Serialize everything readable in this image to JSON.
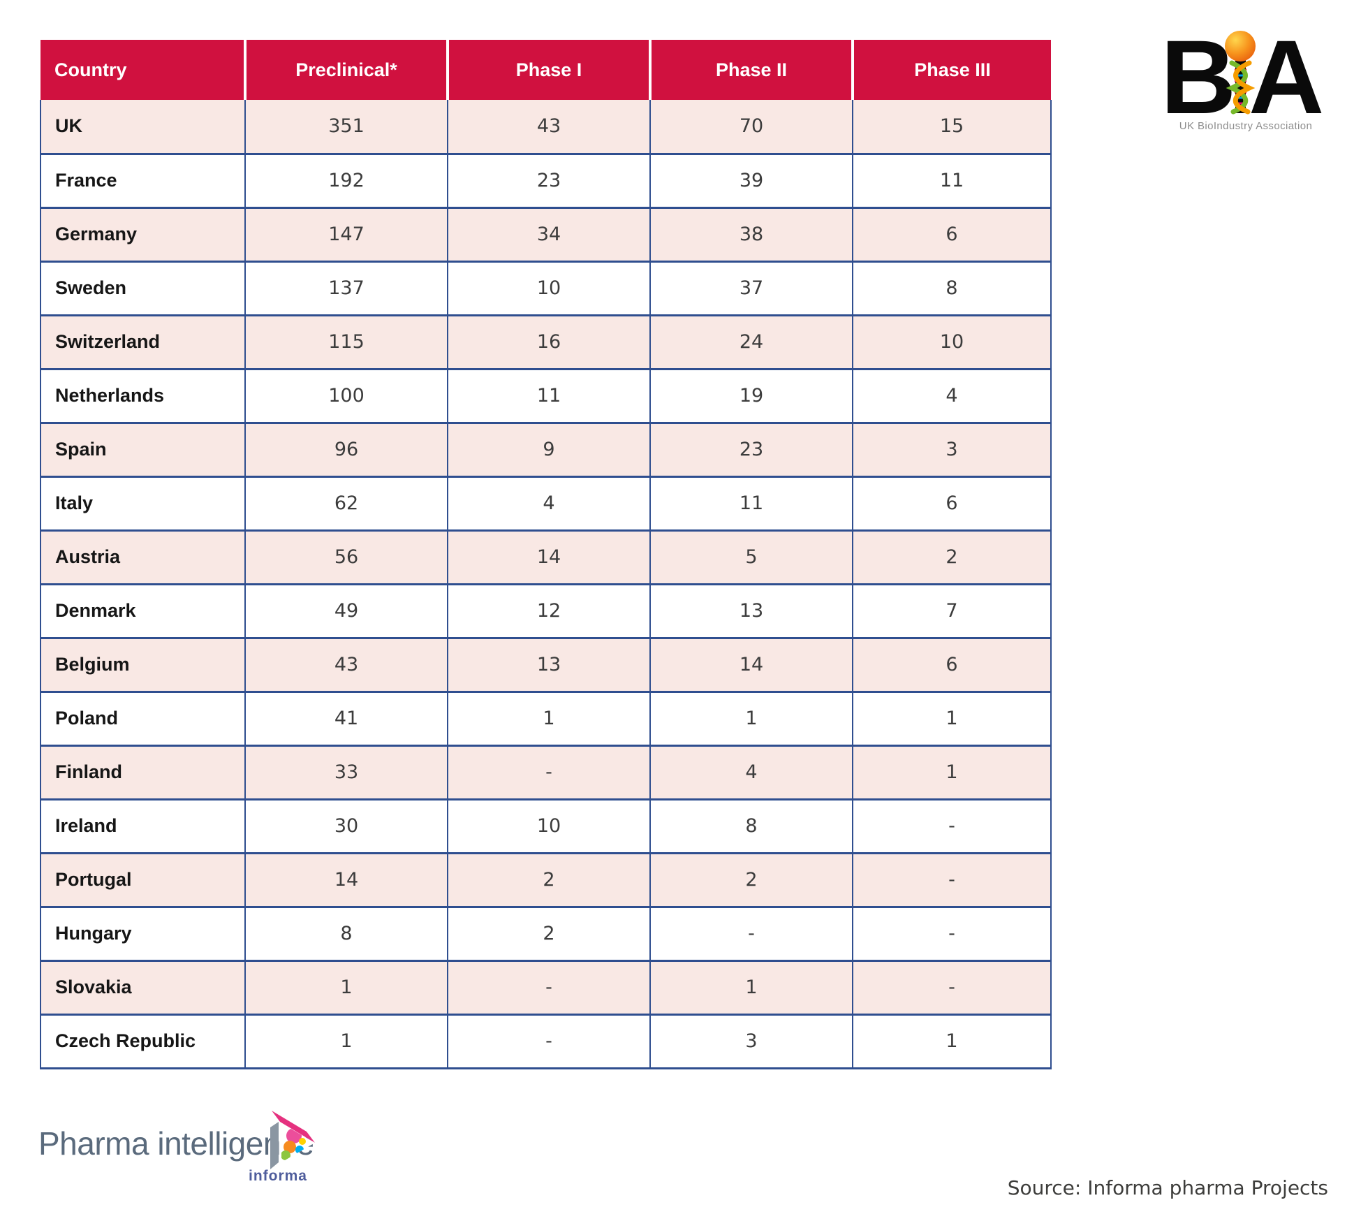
{
  "colors": {
    "red": "#D0113F",
    "pink": "#F9E8E4",
    "blue": "#2F4E8F",
    "text_dark": "#161616",
    "text_num": "#3C3C3C"
  },
  "chart_data": {
    "type": "table",
    "columns": [
      "Country",
      "Preclinical*",
      "Phase I",
      "Phase II",
      "Phase III"
    ],
    "rows": [
      [
        "UK",
        "351",
        "43",
        "70",
        "15"
      ],
      [
        "France",
        "192",
        "23",
        "39",
        "11"
      ],
      [
        "Germany",
        "147",
        "34",
        "38",
        "6"
      ],
      [
        "Sweden",
        "137",
        "10",
        "37",
        "8"
      ],
      [
        "Switzerland",
        "115",
        "16",
        "24",
        "10"
      ],
      [
        "Netherlands",
        "100",
        "11",
        "19",
        "4"
      ],
      [
        "Spain",
        "96",
        "9",
        "23",
        "3"
      ],
      [
        "Italy",
        "62",
        "4",
        "11",
        "6"
      ],
      [
        "Austria",
        "56",
        "14",
        "5",
        "2"
      ],
      [
        "Denmark",
        "49",
        "12",
        "13",
        "7"
      ],
      [
        "Belgium",
        "43",
        "13",
        "14",
        "6"
      ],
      [
        "Poland",
        "41",
        "1",
        "1",
        "1"
      ],
      [
        "Finland",
        "33",
        "-",
        "4",
        "1"
      ],
      [
        "Ireland",
        "30",
        "10",
        "8",
        "-"
      ],
      [
        "Portugal",
        "14",
        "2",
        "2",
        "-"
      ],
      [
        "Hungary",
        "8",
        "2",
        "-",
        "-"
      ],
      [
        "Slovakia",
        "1",
        "-",
        "1",
        "-"
      ],
      [
        "Czech Republic",
        "1",
        "-",
        "3",
        "1"
      ]
    ],
    "title": "",
    "legend": false,
    "grid": true
  },
  "bia_logo": {
    "letter_b": "B",
    "letter_a": "A",
    "tagline": "UK BioIndustry Association"
  },
  "pharma_logo": {
    "wordmark": "Pharma intelligence",
    "sub": "informa"
  },
  "source": "Source: Informa pharma Projects"
}
